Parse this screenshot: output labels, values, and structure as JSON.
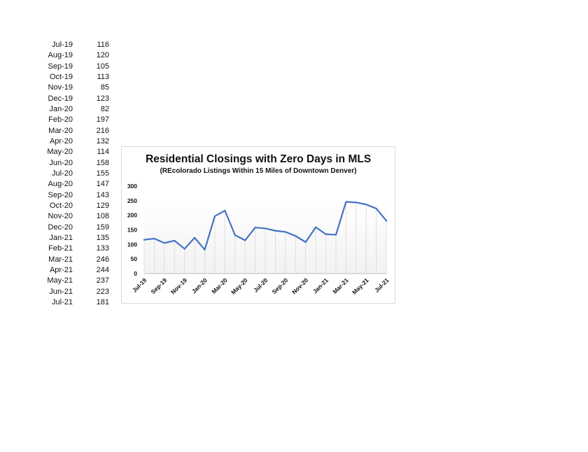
{
  "table": {
    "rows": [
      {
        "month": "Jul-19",
        "value": "116"
      },
      {
        "month": "Aug-19",
        "value": "120"
      },
      {
        "month": "Sep-19",
        "value": "105"
      },
      {
        "month": "Oct-19",
        "value": "113"
      },
      {
        "month": "Nov-19",
        "value": "85"
      },
      {
        "month": "Dec-19",
        "value": "123"
      },
      {
        "month": "Jan-20",
        "value": "82"
      },
      {
        "month": "Feb-20",
        "value": "197"
      },
      {
        "month": "Mar-20",
        "value": "216"
      },
      {
        "month": "Apr-20",
        "value": "132"
      },
      {
        "month": "May-20",
        "value": "114"
      },
      {
        "month": "Jun-20",
        "value": "158"
      },
      {
        "month": "Jul-20",
        "value": "155"
      },
      {
        "month": "Aug-20",
        "value": "147"
      },
      {
        "month": "Sep-20",
        "value": "143"
      },
      {
        "month": "Oct-20",
        "value": "129"
      },
      {
        "month": "Nov-20",
        "value": "108"
      },
      {
        "month": "Dec-20",
        "value": "159"
      },
      {
        "month": "Jan-21",
        "value": "135"
      },
      {
        "month": "Feb-21",
        "value": "133"
      },
      {
        "month": "Mar-21",
        "value": "246"
      },
      {
        "month": "Apr-21",
        "value": "244"
      },
      {
        "month": "May-21",
        "value": "237"
      },
      {
        "month": "Jun-21",
        "value": "223"
      },
      {
        "month": "Jul-21",
        "value": "181"
      }
    ]
  },
  "chart_data": {
    "type": "line",
    "title": "Residential Closings with Zero Days in MLS",
    "subtitle": "(REcolorado Listings Within 15 Miles of Downtown Denver)",
    "xlabel": "",
    "ylabel": "",
    "categories": [
      "Jul-19",
      "Aug-19",
      "Sep-19",
      "Oct-19",
      "Nov-19",
      "Dec-19",
      "Jan-20",
      "Feb-20",
      "Mar-20",
      "Apr-20",
      "May-20",
      "Jun-20",
      "Jul-20",
      "Aug-20",
      "Sep-20",
      "Oct-20",
      "Nov-20",
      "Dec-20",
      "Jan-21",
      "Feb-21",
      "Mar-21",
      "Apr-21",
      "May-21",
      "Jun-21",
      "Jul-21"
    ],
    "x_tick_labels": [
      "Jul-19",
      "Sep-19",
      "Nov-19",
      "Jan-20",
      "Mar-20",
      "May-20",
      "Jul-20",
      "Sep-20",
      "Nov-20",
      "Jan-21",
      "Mar-21",
      "May-21",
      "Jul-21"
    ],
    "values": [
      116,
      120,
      105,
      113,
      85,
      123,
      82,
      197,
      216,
      132,
      114,
      158,
      155,
      147,
      143,
      129,
      108,
      159,
      135,
      133,
      246,
      244,
      237,
      223,
      181
    ],
    "ylim": [
      0,
      300
    ],
    "y_ticks": [
      0,
      50,
      100,
      150,
      200,
      250,
      300
    ],
    "grid": "vertical",
    "legend": "none",
    "line_color": "#4472c4",
    "grid_color": "#d9d9d9",
    "fill_color": "#f2f2f2"
  }
}
